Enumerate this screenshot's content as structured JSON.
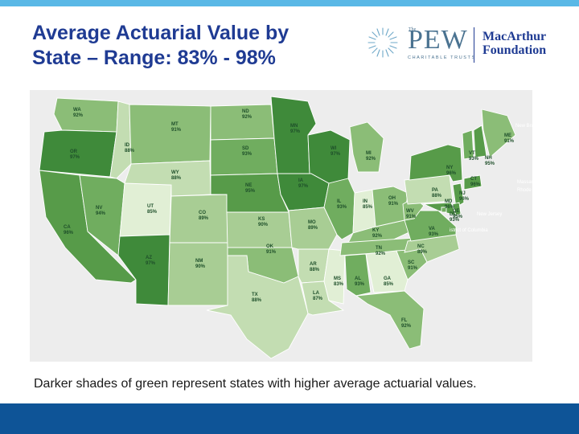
{
  "slide": {
    "title_line1": "Average Actuarial Value by",
    "title_line2": "State – Range: 83% - 98%",
    "caption": "Darker shades of green represent states with higher average actuarial values."
  },
  "logos": {
    "pew": {
      "small": "The",
      "word": "PEW",
      "sub": "CHARITABLE TRUSTS"
    },
    "macarthur": {
      "line1": "MacArthur",
      "line2": "Foundation"
    }
  },
  "colors": {
    "title": "#1f3b93",
    "top_bar": "#5ab8e6",
    "bottom_bar": "#0e5497",
    "shade_98": "#3f8a3a",
    "shade_96": "#579b49",
    "shade_94": "#70ad5f",
    "shade_92": "#8bbd77",
    "shade_90": "#a8cd94",
    "shade_88": "#c3ddb2",
    "shade_85": "#e1efd5"
  },
  "map": {
    "states": [
      {
        "code": "WA",
        "value": "92%"
      },
      {
        "code": "OR",
        "value": "97%"
      },
      {
        "code": "CA",
        "value": "96%"
      },
      {
        "code": "ID",
        "value": "88%"
      },
      {
        "code": "NV",
        "value": "94%"
      },
      {
        "code": "UT",
        "value": "85%"
      },
      {
        "code": "AZ",
        "value": "97%"
      },
      {
        "code": "MT",
        "value": "91%"
      },
      {
        "code": "WY",
        "value": "88%"
      },
      {
        "code": "CO",
        "value": "89%"
      },
      {
        "code": "NM",
        "value": "90%"
      },
      {
        "code": "ND",
        "value": "92%"
      },
      {
        "code": "SD",
        "value": "93%"
      },
      {
        "code": "NE",
        "value": "95%"
      },
      {
        "code": "KS",
        "value": "90%"
      },
      {
        "code": "OK",
        "value": "91%"
      },
      {
        "code": "TX",
        "value": "88%"
      },
      {
        "code": "MN",
        "value": "97%"
      },
      {
        "code": "IA",
        "value": "97%"
      },
      {
        "code": "MO",
        "value": "89%"
      },
      {
        "code": "AR",
        "value": "88%"
      },
      {
        "code": "LA",
        "value": "87%"
      },
      {
        "code": "WI",
        "value": "97%"
      },
      {
        "code": "IL",
        "value": "93%"
      },
      {
        "code": "MS",
        "value": "83%"
      },
      {
        "code": "MI",
        "value": "92%"
      },
      {
        "code": "IN",
        "value": "85%"
      },
      {
        "code": "KY",
        "value": "92%"
      },
      {
        "code": "TN",
        "value": "92%"
      },
      {
        "code": "AL",
        "value": "93%"
      },
      {
        "code": "OH",
        "value": "91%"
      },
      {
        "code": "GA",
        "value": "85%"
      },
      {
        "code": "FL",
        "value": "92%"
      },
      {
        "code": "SC",
        "value": "91%"
      },
      {
        "code": "NC",
        "value": "89%"
      },
      {
        "code": "VA",
        "value": "93%"
      },
      {
        "code": "WV",
        "value": "91%"
      },
      {
        "code": "PA",
        "value": "88%"
      },
      {
        "code": "NY",
        "value": "96%"
      },
      {
        "code": "VT",
        "value": "93%"
      },
      {
        "code": "NH",
        "value": "95%"
      },
      {
        "code": "ME",
        "value": "91%"
      },
      {
        "code": "CT",
        "value": "96%"
      },
      {
        "code": "NJ",
        "value": "96%"
      },
      {
        "code": "MD",
        "value": "96%"
      },
      {
        "code": "DE",
        "value": "95%"
      },
      {
        "code": "DC",
        "value": "93%"
      }
    ],
    "place_names": [
      "Massach",
      "Rhode Islan",
      "New Jersey",
      "istrict of Columbia",
      "New Bru"
    ]
  }
}
